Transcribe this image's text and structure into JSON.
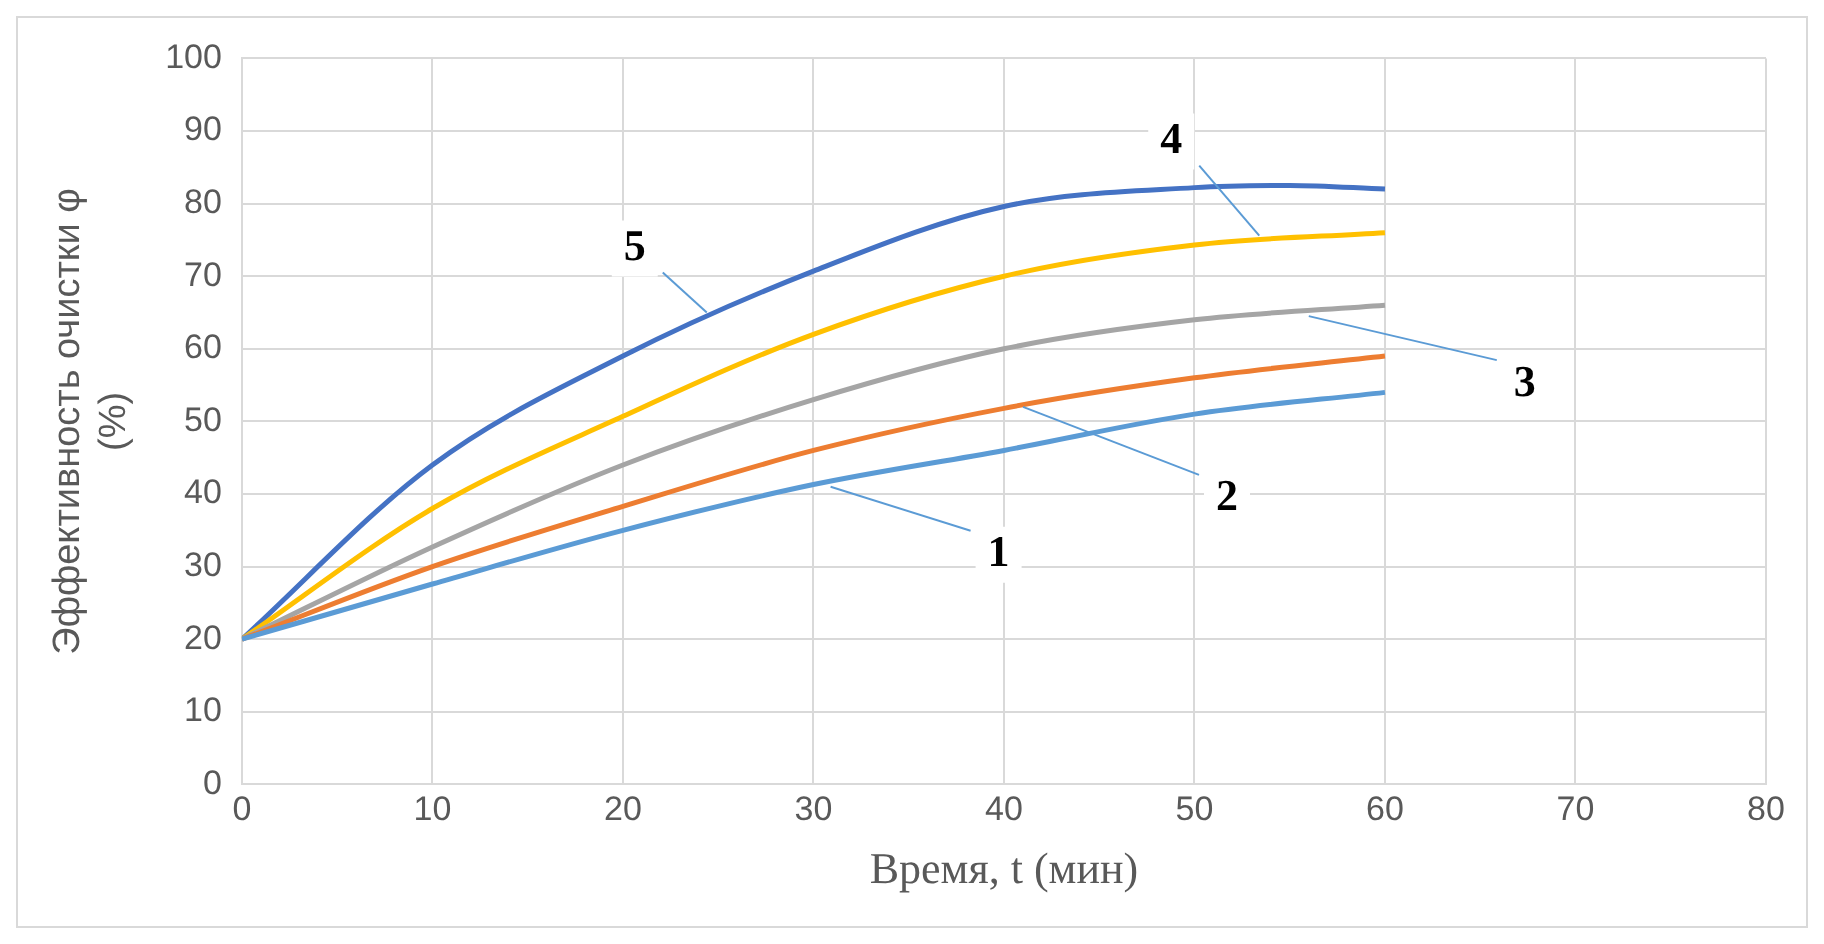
{
  "chart_data": {
    "type": "line",
    "xlabel": "Время, t (мин)",
    "ylabel": "Эффективность очистки φ (%)",
    "series": [
      {
        "color": "#5b9bd5",
        "x": [
          0,
          10,
          20,
          30,
          40,
          50,
          60
        ],
        "values": [
          20,
          27.6,
          35,
          41.3,
          46,
          51,
          54
        ]
      },
      {
        "color": "#ed7d31",
        "x": [
          0,
          10,
          20,
          30,
          40,
          50,
          60
        ],
        "values": [
          20,
          30,
          38.3,
          46,
          51.8,
          56,
          59
        ]
      },
      {
        "color": "#a5a5a5",
        "x": [
          0,
          10,
          20,
          30,
          40,
          50,
          60
        ],
        "values": [
          20,
          32.7,
          44,
          53,
          60,
          64,
          66
        ]
      },
      {
        "color": "#ffc000",
        "x": [
          0,
          10,
          20,
          30,
          40,
          50,
          60
        ],
        "values": [
          20,
          38,
          50.7,
          62,
          70,
          74.3,
          76
        ]
      },
      {
        "color": "#4472c4",
        "x": [
          0,
          10,
          20,
          30,
          40,
          50,
          55,
          60
        ],
        "values": [
          20,
          44,
          59,
          70.7,
          79.6,
          82.2,
          82.5,
          82
        ]
      }
    ],
    "annotations": [
      {
        "text": "1",
        "x": 30.9,
        "y": 41
      },
      {
        "text": "2",
        "x": 41,
        "y": 52
      },
      {
        "text": "3",
        "x": 56,
        "y": 64.5
      },
      {
        "text": "4",
        "x": 53.4,
        "y": 75.6
      },
      {
        "text": "5",
        "x": 24.4,
        "y": 65
      }
    ],
    "xlim": [
      0,
      80
    ],
    "xticks": [
      0,
      10,
      20,
      30,
      40,
      50,
      60,
      70,
      80
    ],
    "ylim": [
      0,
      100
    ],
    "yticks": [
      0,
      10,
      20,
      30,
      40,
      50,
      60,
      70,
      80,
      90,
      100
    ],
    "grid": true,
    "legend": false,
    "marker": "none",
    "line_style": "solid"
  }
}
